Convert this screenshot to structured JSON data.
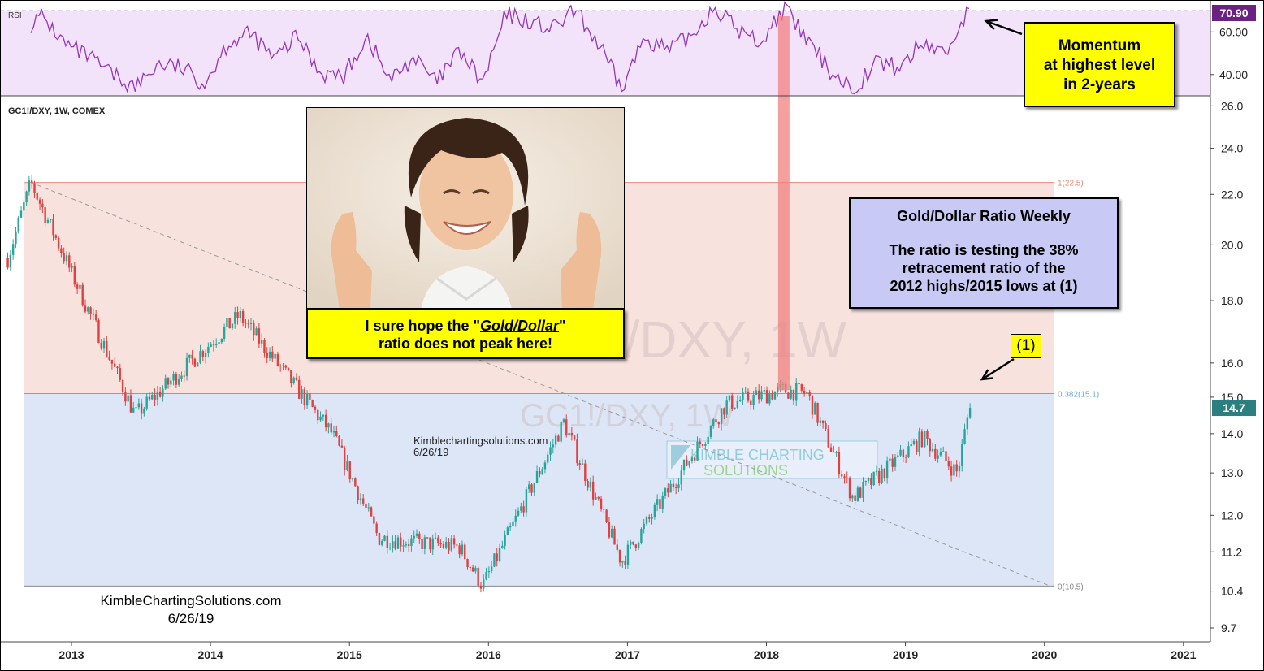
{
  "chart_data": [
    {
      "type": "line",
      "panel": "RSI",
      "title": "RSI",
      "series": [
        {
          "x": [
            "2012-09",
            "2012-10",
            "2012-12",
            "2013-02",
            "2013-04",
            "2013-06",
            "2013-08",
            "2013-10",
            "2013-12",
            "2014-02",
            "2014-04",
            "2014-06",
            "2014-08",
            "2014-10",
            "2014-12",
            "2015-02",
            "2015-04",
            "2015-06",
            "2015-08",
            "2015-10",
            "2015-12",
            "2016-02",
            "2016-04",
            "2016-06",
            "2016-08",
            "2016-10",
            "2016-12",
            "2017-02",
            "2017-04",
            "2017-06",
            "2017-08",
            "2017-10",
            "2017-12",
            "2018-02",
            "2018-04",
            "2018-06",
            "2018-08",
            "2018-10",
            "2018-12",
            "2019-02",
            "2019-04",
            "2019-06"
          ],
          "values": [
            64,
            67,
            54,
            48,
            40,
            34,
            45,
            43,
            36,
            55,
            59,
            47,
            58,
            41,
            39,
            58,
            37,
            48,
            36,
            51,
            36,
            68,
            65,
            61,
            70,
            54,
            33,
            58,
            51,
            58,
            72,
            61,
            55,
            71,
            56,
            42,
            33,
            46,
            43,
            55,
            50,
            71
          ]
        }
      ],
      "y_ticks": [
        "60.00",
        "40.00"
      ],
      "ylim": [
        30,
        75
      ],
      "levels": [
        70,
        30
      ],
      "last_value_label": "70.90",
      "colors": {
        "line": "#9536b8",
        "band": "#f2e2fa",
        "last_badge": "#6b2181"
      }
    },
    {
      "type": "bar",
      "style": "candlestick",
      "title": "GC1!/DXY, 1W, COMEX",
      "watermark": "GC1!/DXY, 1W",
      "x_ticks": [
        "2013",
        "2014",
        "2015",
        "2016",
        "2017",
        "2018",
        "2019",
        "2020",
        "2021"
      ],
      "y_ticks": [
        "26.0",
        "24.0",
        "22.0",
        "20.0",
        "18.0",
        "16.0",
        "15.0",
        "14.0",
        "13.0",
        "12.0",
        "11.2",
        "10.4",
        "9.7"
      ],
      "ylim": [
        9.45,
        26.5
      ],
      "log_scale": true,
      "key_points": {
        "x": [
          "2012-07",
          "2012-09",
          "2013-06",
          "2014-03",
          "2014-11",
          "2015-03",
          "2015-10",
          "2015-12",
          "2016-07",
          "2016-12",
          "2017-09",
          "2018-02",
          "2018-04",
          "2018-08",
          "2019-02",
          "2019-05",
          "2019-06"
        ],
        "y": [
          19.5,
          22.5,
          14.5,
          17.5,
          14.0,
          11.5,
          11.3,
          10.5,
          14.3,
          11.0,
          14.8,
          15.2,
          15.1,
          12.4,
          13.9,
          13.0,
          14.7
        ]
      },
      "fib_levels": [
        {
          "label": "1(22.5)",
          "value": 22.5
        },
        {
          "label": "0.382(15.1)",
          "value": 15.1
        },
        {
          "label": "0(10.5)",
          "value": 10.5
        }
      ],
      "trendline": {
        "from": {
          "x": "2012-09",
          "y": 22.5
        },
        "to": {
          "x": "2020-01",
          "y": 10.5
        }
      },
      "last_value_label": "14.7",
      "highlight_date": "2018-02",
      "colors": {
        "up": "#26a69a",
        "down": "#e04040",
        "upper_zone": "#f8e2de",
        "lower_zone": "#dce6f7",
        "fib_upper": "#e88a7a",
        "fib_mid": "#6ea2e0",
        "fib_low": "#888888",
        "highlight": "#f08080",
        "last_badge": "#2b7f7f"
      }
    }
  ],
  "annotations": {
    "momentum": [
      "Momentum",
      "at highest level",
      "in 2-years"
    ],
    "ratio_title": "Gold/Dollar Ratio Weekly",
    "ratio_body": [
      "The ratio is testing the 38%",
      "retracement ratio of the",
      "2012 highs/2015 lows at (1)"
    ],
    "hope_prefix": "I sure hope the \"",
    "hope_em": "Gold/Dollar",
    "hope_suffix": "\"",
    "hope_line2": "ratio does not peak here!",
    "marker": "(1)",
    "credit_site": "KimbleChartingSolutions.com",
    "credit_date": "6/26/19",
    "credit_mid_site": "Kimblechartingsolutions.com",
    "credit_mid_date": "6/26/19",
    "logo_line1": "KIMBLE CHARTING",
    "logo_line2": "SOLUTIONS"
  },
  "photo": {
    "icon": "boy-crossing-fingers-photo"
  }
}
